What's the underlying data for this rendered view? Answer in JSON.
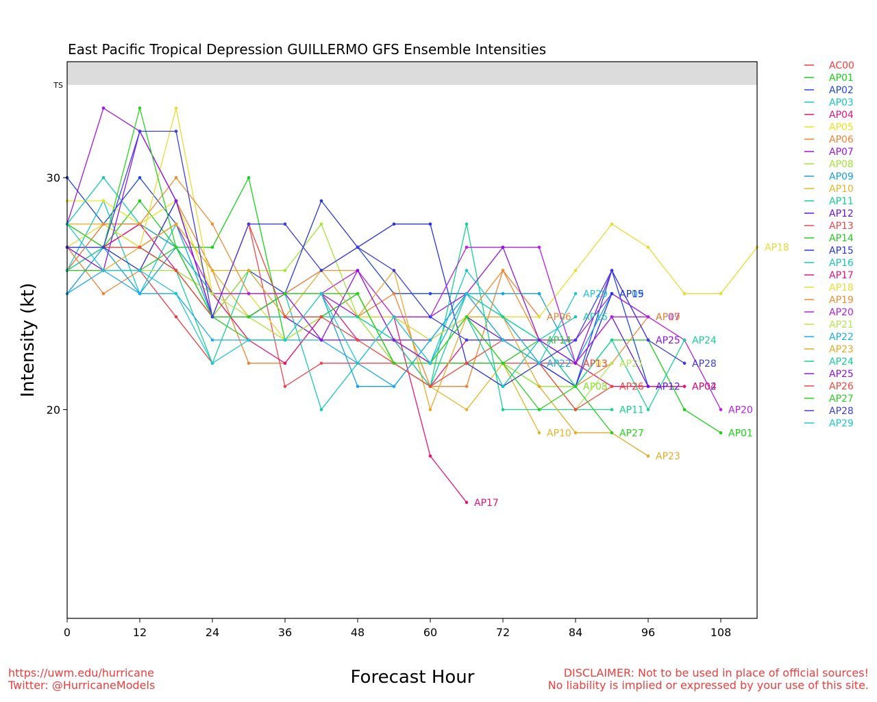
{
  "footer": {
    "url": "https://uwm.edu/hurricane",
    "twitter": "Twitter: @HurricaneModels",
    "disclaimer1": "DISCLAIMER: Not to be used in place of official sources!",
    "disclaimer2": "No liability is implied or expressed by your use of this site."
  },
  "chart_data": {
    "type": "line",
    "title": "East Pacific Tropical Depression GUILLERMO GFS Ensemble Intensities",
    "xlabel": "Forecast Hour",
    "ylabel": "Intensity (kt)",
    "xlim": [
      0,
      114
    ],
    "ylim": [
      11,
      35
    ],
    "x_ticks": [
      0,
      12,
      24,
      36,
      48,
      60,
      72,
      84,
      96,
      108
    ],
    "y_ticks": [
      20,
      30
    ],
    "threshold": {
      "label": "TS",
      "value": 34,
      "shade_color": "#dcdcdc"
    },
    "legend_position": "right",
    "series": [
      {
        "name": "AC00",
        "color": "#f03c3c",
        "x": [
          0,
          6,
          12,
          18,
          24
        ],
        "y": [
          26,
          26,
          26,
          24,
          22
        ]
      },
      {
        "name": "AP01",
        "color": "#14d214",
        "x": [
          0,
          6,
          12,
          18,
          24,
          30,
          36,
          42,
          48,
          54,
          60,
          66,
          72,
          78,
          84,
          90,
          96,
          102,
          108
        ],
        "y": [
          28,
          27,
          29,
          27,
          27,
          30,
          23,
          24,
          25,
          22,
          22,
          22,
          22,
          21,
          21,
          23,
          23,
          20,
          19
        ]
      },
      {
        "name": "AP02",
        "color": "#1e46e6",
        "x": [
          0,
          6,
          12,
          18,
          24,
          30,
          36,
          42,
          48,
          54,
          60,
          66,
          72,
          78,
          84,
          90,
          96,
          102
        ],
        "y": [
          30,
          28,
          30,
          28,
          24,
          26,
          25,
          26,
          27,
          25,
          25,
          25,
          23,
          22,
          21,
          26,
          21,
          21
        ]
      },
      {
        "name": "AP03",
        "color": "#14c8c8",
        "x": [
          0,
          6,
          12,
          18,
          24,
          30,
          36,
          42,
          48,
          54,
          60,
          66,
          72,
          78,
          84
        ],
        "y": [
          26,
          29,
          25,
          28,
          24,
          24,
          24,
          24,
          24,
          23,
          22,
          26,
          24,
          23,
          21
        ]
      },
      {
        "name": "AP04",
        "color": "#e61478",
        "x": [
          0,
          6,
          12,
          18,
          24,
          30,
          36,
          42,
          48,
          54,
          60,
          66,
          72,
          78,
          84,
          90,
          96,
          102
        ],
        "y": [
          27,
          27,
          28,
          27,
          25,
          25,
          25,
          25,
          23,
          23,
          21,
          23,
          23,
          22,
          22,
          21,
          21,
          21
        ]
      },
      {
        "name": "AP05",
        "color": "#e6e61e",
        "x": [
          0,
          6,
          12,
          18,
          24,
          30,
          36,
          42,
          48,
          54,
          60,
          66,
          72,
          78,
          84
        ],
        "y": [
          29,
          29,
          28,
          29,
          25,
          23,
          23,
          25,
          25,
          22,
          22,
          24,
          24,
          22,
          22
        ]
      },
      {
        "name": "AP06",
        "color": "#f08232",
        "x": [
          0,
          6,
          12,
          18,
          24,
          30,
          36,
          42,
          48,
          54,
          60,
          66,
          72,
          78
        ],
        "y": [
          27,
          25,
          26,
          29,
          26,
          22,
          22,
          24,
          24,
          25,
          21,
          21,
          26,
          24
        ]
      },
      {
        "name": "AP07",
        "color": "#a014e6",
        "x": [
          0,
          6,
          12,
          18,
          24,
          30,
          36,
          42,
          48,
          54,
          60,
          66,
          72,
          78,
          84,
          90,
          96
        ],
        "y": [
          28,
          33,
          32,
          29,
          24,
          24,
          25,
          25,
          24,
          24,
          24,
          25,
          23,
          23,
          23,
          25,
          24
        ]
      },
      {
        "name": "AP08",
        "color": "#a0e632",
        "x": [
          0,
          6,
          12,
          18,
          24,
          30,
          36,
          42,
          48,
          54,
          60,
          66,
          72,
          78,
          84
        ],
        "y": [
          27,
          27,
          26,
          26,
          24,
          26,
          26,
          28,
          24,
          24,
          22,
          24,
          22,
          21,
          21
        ]
      },
      {
        "name": "AP09",
        "color": "#14a0e6",
        "x": [
          0,
          6,
          12,
          18,
          24,
          30,
          36,
          42,
          48,
          54,
          60,
          66,
          72,
          78,
          84,
          90
        ],
        "y": [
          25,
          27,
          25,
          27,
          25,
          25,
          25,
          25,
          21,
          21,
          23,
          25,
          25,
          25,
          22,
          25
        ]
      },
      {
        "name": "AP10",
        "color": "#e6b428",
        "x": [
          0,
          6,
          12,
          18,
          24,
          30,
          36,
          42,
          48,
          54,
          60,
          66,
          72,
          78
        ],
        "y": [
          28,
          28,
          27,
          28,
          26,
          24,
          23,
          24,
          24,
          22,
          21,
          20,
          22,
          19
        ]
      },
      {
        "name": "AP11",
        "color": "#14d28c",
        "x": [
          0,
          6,
          12,
          18,
          24,
          30,
          36,
          42,
          48,
          54,
          60,
          66,
          72,
          78,
          84,
          90
        ],
        "y": [
          27,
          27,
          27,
          26,
          22,
          26,
          24,
          24,
          24,
          22,
          21,
          28,
          20,
          20,
          20,
          20
        ]
      },
      {
        "name": "AP12",
        "color": "#6414e6",
        "x": [
          0,
          6,
          12,
          18,
          24,
          30,
          36,
          42,
          48,
          54,
          60,
          66,
          72,
          78,
          84,
          90,
          96
        ],
        "y": [
          26,
          28,
          28,
          27,
          24,
          24,
          24,
          23,
          23,
          23,
          23,
          24,
          23,
          23,
          22,
          24,
          21
        ]
      },
      {
        "name": "AP13",
        "color": "#f04650",
        "x": [
          0,
          6,
          12,
          18,
          24,
          30,
          36,
          42,
          48,
          54,
          60,
          66,
          72,
          78,
          84
        ],
        "y": [
          27,
          27,
          27,
          26,
          24,
          28,
          21,
          22,
          22,
          22,
          22,
          22,
          22,
          22,
          22
        ]
      },
      {
        "name": "AP14",
        "color": "#28c828",
        "x": [
          0,
          6,
          12,
          18,
          24,
          30,
          36,
          42,
          48,
          54,
          60,
          66,
          72,
          78
        ],
        "y": [
          26,
          26,
          26,
          27,
          24,
          23,
          23,
          24,
          25,
          22,
          22,
          22,
          22,
          23
        ]
      },
      {
        "name": "AP15",
        "color": "#2832e6",
        "x": [
          0,
          6,
          12,
          18,
          24,
          30,
          36,
          42,
          48,
          54,
          60,
          66,
          72,
          78,
          84,
          90
        ],
        "y": [
          26,
          27,
          26,
          29,
          24,
          24,
          25,
          29,
          27,
          28,
          28,
          22,
          21,
          22,
          21,
          25
        ]
      },
      {
        "name": "AP16",
        "color": "#14c8b4",
        "x": [
          0,
          6,
          12,
          18,
          24,
          30,
          36,
          42,
          48,
          54,
          60,
          66,
          72,
          78,
          84
        ],
        "y": [
          28,
          30,
          28,
          27,
          25,
          25,
          25,
          20,
          22,
          24,
          23,
          24,
          21,
          23,
          24
        ]
      },
      {
        "name": "AP17",
        "color": "#e61478",
        "x": [
          0,
          6,
          12,
          18,
          24,
          30,
          36,
          42,
          48,
          54,
          60,
          66
        ],
        "y": [
          27,
          27,
          28,
          26,
          25,
          23,
          22,
          24,
          24,
          24,
          18,
          16
        ]
      },
      {
        "name": "AP18",
        "color": "#e6dc32",
        "x": [
          0,
          6,
          12,
          18,
          24,
          30,
          36,
          42,
          48,
          54,
          60,
          66,
          72,
          78,
          84,
          90,
          96,
          102,
          108,
          114
        ],
        "y": [
          27,
          28,
          27,
          33,
          25,
          25,
          23,
          24,
          24,
          24,
          23,
          24,
          24,
          24,
          26,
          28,
          27,
          25,
          25,
          27
        ]
      },
      {
        "name": "AP19",
        "color": "#f08c32",
        "x": [
          0,
          6,
          12,
          18,
          24,
          30,
          36,
          42,
          48,
          54,
          60,
          66,
          72,
          78,
          84,
          90,
          96
        ],
        "y": [
          26,
          28,
          28,
          30,
          28,
          25,
          25,
          26,
          26,
          23,
          22,
          24,
          26,
          23,
          21,
          22,
          24
        ]
      },
      {
        "name": "AP20",
        "color": "#b41ee6",
        "x": [
          0,
          6,
          12,
          18,
          24,
          30,
          36,
          42,
          48,
          54,
          60,
          66,
          72,
          78,
          84,
          90,
          96,
          102,
          108
        ],
        "y": [
          26,
          27,
          27,
          28,
          25,
          25,
          25,
          25,
          26,
          24,
          24,
          27,
          27,
          27,
          22,
          24,
          24,
          23,
          20
        ]
      },
      {
        "name": "AP21",
        "color": "#b4e650",
        "x": [
          0,
          6,
          12,
          18,
          24,
          30,
          36,
          42,
          48,
          54,
          60,
          66,
          72,
          78,
          84,
          90
        ],
        "y": [
          26,
          27,
          27,
          26,
          25,
          24,
          23,
          24,
          24,
          22,
          22,
          24,
          24,
          22,
          20,
          22
        ]
      },
      {
        "name": "AP22",
        "color": "#1eaaf0",
        "x": [
          0,
          6,
          12,
          18,
          24,
          30,
          36,
          42,
          48,
          54,
          60,
          66,
          72,
          78
        ],
        "y": [
          25,
          26,
          25,
          25,
          23,
          23,
          23,
          23,
          22,
          21,
          23,
          25,
          24,
          22
        ]
      },
      {
        "name": "AP23",
        "color": "#e6aa28",
        "x": [
          0,
          6,
          12,
          18,
          24,
          30,
          36,
          42,
          48,
          54,
          60,
          66,
          72,
          78,
          84,
          90,
          96
        ],
        "y": [
          27,
          26,
          27,
          28,
          26,
          26,
          24,
          26,
          24,
          26,
          20,
          24,
          24,
          21,
          19,
          19,
          18
        ]
      },
      {
        "name": "AP24",
        "color": "#14d296",
        "x": [
          0,
          6,
          12,
          18,
          24,
          30,
          36,
          42,
          48,
          54,
          60,
          66,
          72,
          78,
          84,
          90,
          96,
          102
        ],
        "y": [
          26,
          27,
          27,
          26,
          24,
          24,
          24,
          24,
          24,
          23,
          21,
          25,
          24,
          23,
          21,
          23,
          20,
          23
        ]
      },
      {
        "name": "AP25",
        "color": "#8c14e6",
        "x": [
          0,
          6,
          12,
          18,
          24,
          30,
          36,
          42,
          48,
          54,
          60,
          66,
          72,
          78,
          84,
          90,
          96
        ],
        "y": [
          27,
          26,
          32,
          29,
          24,
          24,
          25,
          23,
          26,
          23,
          22,
          25,
          27,
          23,
          22,
          26,
          23
        ]
      },
      {
        "name": "AP26",
        "color": "#f0463c",
        "x": [
          0,
          6,
          12,
          18,
          24,
          30,
          36,
          42,
          48,
          54,
          60,
          66,
          72,
          78,
          84,
          90
        ],
        "y": [
          27,
          27,
          27,
          26,
          24,
          28,
          24,
          24,
          23,
          22,
          21,
          22,
          23,
          22,
          20,
          21
        ]
      },
      {
        "name": "AP27",
        "color": "#28d21e",
        "x": [
          0,
          6,
          12,
          18,
          24,
          30,
          36,
          42,
          48,
          54,
          60,
          66,
          72,
          78,
          84,
          90
        ],
        "y": [
          28,
          27,
          33,
          27,
          24,
          24,
          25,
          25,
          25,
          22,
          22,
          24,
          22,
          20,
          21,
          19
        ]
      },
      {
        "name": "AP28",
        "color": "#3c3ce6",
        "x": [
          0,
          6,
          12,
          18,
          24,
          30,
          36,
          42,
          48,
          54,
          60,
          66,
          72,
          78,
          84,
          90,
          96,
          102
        ],
        "y": [
          27,
          27,
          32,
          32,
          24,
          28,
          28,
          26,
          27,
          26,
          24,
          23,
          23,
          22,
          23,
          26,
          23,
          22
        ]
      },
      {
        "name": "AP29",
        "color": "#1ec8d2",
        "x": [
          0,
          6,
          12,
          18,
          24,
          30,
          36,
          42,
          48,
          54,
          60,
          66,
          72,
          78,
          84
        ],
        "y": [
          28,
          26,
          26,
          25,
          22,
          23,
          23,
          25,
          22,
          24,
          22,
          25,
          23,
          22,
          25
        ]
      }
    ]
  }
}
